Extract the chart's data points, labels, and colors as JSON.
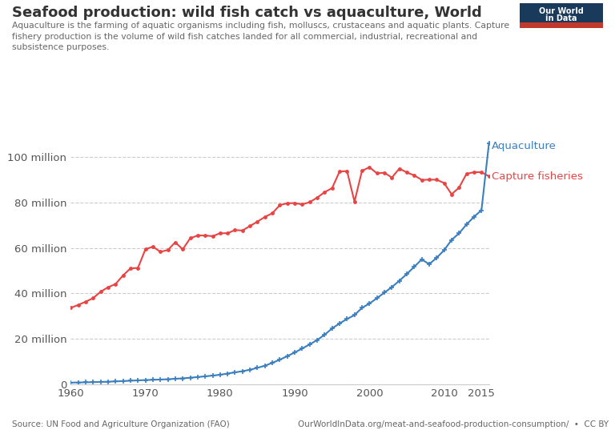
{
  "title": "Seafood production: wild fish catch vs aquaculture, World",
  "subtitle": "Aquaculture is the farming of aquatic organisms including fish, molluscs, crustaceans and aquatic plants. Capture\nfishery production is the volume of wild fish catches landed for all commercial, industrial, recreational and\nsubsistence purposes.",
  "source_left": "Source: UN Food and Agriculture Organization (FAO)",
  "source_right": "OurWorldInData.org/meat-and-seafood-production-consumption/  •  CC BY",
  "logo_bg": "#1a3a5c",
  "logo_red": "#c0392b",
  "capture_color": "#e84444",
  "aquaculture_color": "#3a7fbf",
  "years": [
    1960,
    1961,
    1962,
    1963,
    1964,
    1965,
    1966,
    1967,
    1968,
    1969,
    1970,
    1971,
    1972,
    1973,
    1974,
    1975,
    1976,
    1977,
    1978,
    1979,
    1980,
    1981,
    1982,
    1983,
    1984,
    1985,
    1986,
    1987,
    1988,
    1989,
    1990,
    1991,
    1992,
    1993,
    1994,
    1995,
    1996,
    1997,
    1998,
    1999,
    2000,
    2001,
    2002,
    2003,
    2004,
    2005,
    2006,
    2007,
    2008,
    2009,
    2010,
    2011,
    2012,
    2013,
    2014,
    2015,
    2016
  ],
  "capture": [
    33600000,
    34900000,
    36300000,
    37900000,
    40700000,
    42700000,
    44100000,
    47900000,
    51000000,
    51200000,
    59400000,
    60600000,
    58300000,
    59100000,
    62500000,
    59400000,
    64300000,
    65500000,
    65500000,
    65200000,
    66500000,
    66500000,
    67900000,
    67700000,
    69700000,
    71600000,
    73700000,
    75300000,
    78900000,
    79700000,
    79800000,
    79200000,
    80200000,
    82200000,
    84600000,
    86400000,
    93700000,
    93900000,
    80400000,
    94000000,
    95600000,
    92900000,
    93200000,
    91000000,
    95000000,
    93300000,
    92000000,
    90000000,
    90100000,
    90100000,
    88600000,
    83700000,
    86600000,
    92700000,
    93400000,
    93400000,
    91600000
  ],
  "aquaculture": [
    658000,
    717000,
    787000,
    862000,
    956000,
    1066000,
    1183000,
    1338000,
    1493000,
    1633000,
    1790000,
    1893000,
    2012000,
    2150000,
    2341000,
    2529000,
    2812000,
    3110000,
    3426000,
    3750000,
    4113000,
    4637000,
    5163000,
    5703000,
    6319000,
    7177000,
    8098000,
    9376000,
    10755000,
    12321000,
    13936000,
    15690000,
    17502000,
    19439000,
    21759000,
    24525000,
    26738000,
    28699000,
    30419000,
    33600000,
    35500000,
    37868000,
    40311000,
    42764000,
    45535000,
    48528000,
    51716000,
    54941000,
    52857000,
    55667000,
    59012000,
    63566000,
    66462000,
    70375000,
    73740000,
    76632000,
    106000000
  ],
  "xlim": [
    1960,
    2016
  ],
  "ylim": [
    0,
    110000000
  ],
  "yticks": [
    0,
    20000000,
    40000000,
    60000000,
    80000000,
    100000000
  ],
  "ytick_labels": [
    "0",
    "20 million",
    "40 million",
    "60 million",
    "80 million",
    "100 million"
  ],
  "xticks": [
    1960,
    1970,
    1980,
    1990,
    2000,
    2010,
    2015
  ]
}
